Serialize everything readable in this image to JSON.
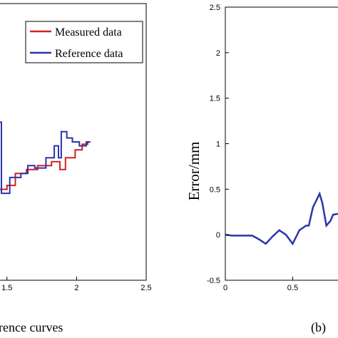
{
  "caption_left": "rence curves",
  "caption_right": "(b)",
  "chart_data": [
    {
      "type": "line",
      "xlabel": "",
      "ylabel": "",
      "xlim": [
        1.45,
        2.5
      ],
      "ylim": [
        -0.5,
        3.0
      ],
      "x_ticks": [
        "1.5",
        "2",
        "2.5"
      ],
      "legend": {
        "placement": "top-right"
      },
      "series": [
        {
          "name": "Measured data",
          "color": "#d42020",
          "points": [
            [
              1.45,
              0.65
            ],
            [
              1.5,
              0.65
            ],
            [
              1.5,
              0.7
            ],
            [
              1.56,
              0.7
            ],
            [
              1.56,
              0.85
            ],
            [
              1.64,
              0.85
            ],
            [
              1.64,
              0.9
            ],
            [
              1.72,
              0.9
            ],
            [
              1.72,
              0.95
            ],
            [
              1.82,
              0.95
            ],
            [
              1.82,
              1.0
            ],
            [
              1.88,
              1.0
            ],
            [
              1.88,
              0.9
            ],
            [
              1.92,
              0.9
            ],
            [
              1.92,
              1.05
            ],
            [
              1.99,
              1.05
            ],
            [
              1.99,
              1.15
            ],
            [
              2.04,
              1.15
            ],
            [
              2.04,
              1.22
            ],
            [
              2.08,
              1.22
            ],
            [
              2.08,
              1.25
            ]
          ]
        },
        {
          "name": "Reference data",
          "color": "#2a35a8",
          "points": [
            [
              1.45,
              1.5
            ],
            [
              1.46,
              1.5
            ],
            [
              1.46,
              0.6
            ],
            [
              1.52,
              0.6
            ],
            [
              1.52,
              0.8
            ],
            [
              1.6,
              0.8
            ],
            [
              1.6,
              0.85
            ],
            [
              1.65,
              0.85
            ],
            [
              1.65,
              0.95
            ],
            [
              1.7,
              0.95
            ],
            [
              1.7,
              0.92
            ],
            [
              1.78,
              0.92
            ],
            [
              1.78,
              1.05
            ],
            [
              1.84,
              1.05
            ],
            [
              1.84,
              1.2
            ],
            [
              1.87,
              1.2
            ],
            [
              1.87,
              1.05
            ],
            [
              1.89,
              1.05
            ],
            [
              1.89,
              1.38
            ],
            [
              1.93,
              1.38
            ],
            [
              1.93,
              1.3
            ],
            [
              1.97,
              1.3
            ],
            [
              1.97,
              1.25
            ],
            [
              2.02,
              1.25
            ],
            [
              2.02,
              1.2
            ],
            [
              2.07,
              1.2
            ],
            [
              2.07,
              1.25
            ],
            [
              2.1,
              1.25
            ]
          ]
        }
      ]
    },
    {
      "type": "line",
      "xlabel": "",
      "ylabel": "Error/mm",
      "xlim": [
        0,
        0.9
      ],
      "ylim": [
        -0.5,
        2.5
      ],
      "x_ticks": [
        "0",
        "0.5"
      ],
      "y_ticks": [
        "-0.5",
        "0",
        "0.5",
        "1",
        "1.5",
        "2",
        "2.5"
      ],
      "series": [
        {
          "name": "",
          "color": "#2a35a8",
          "points": [
            [
              0,
              0
            ],
            [
              0.05,
              -0.01
            ],
            [
              0.1,
              -0.01
            ],
            [
              0.15,
              -0.01
            ],
            [
              0.2,
              -0.01
            ],
            [
              0.25,
              -0.05
            ],
            [
              0.3,
              -0.1
            ],
            [
              0.35,
              -0.02
            ],
            [
              0.4,
              0.05
            ],
            [
              0.45,
              0
            ],
            [
              0.5,
              -0.1
            ],
            [
              0.55,
              0.05
            ],
            [
              0.6,
              0.1
            ],
            [
              0.62,
              0.1
            ],
            [
              0.65,
              0.3
            ],
            [
              0.7,
              0.45
            ],
            [
              0.72,
              0.35
            ],
            [
              0.75,
              0.1
            ],
            [
              0.78,
              0.15
            ],
            [
              0.8,
              0.22
            ],
            [
              0.9,
              0.25
            ]
          ]
        }
      ]
    }
  ]
}
